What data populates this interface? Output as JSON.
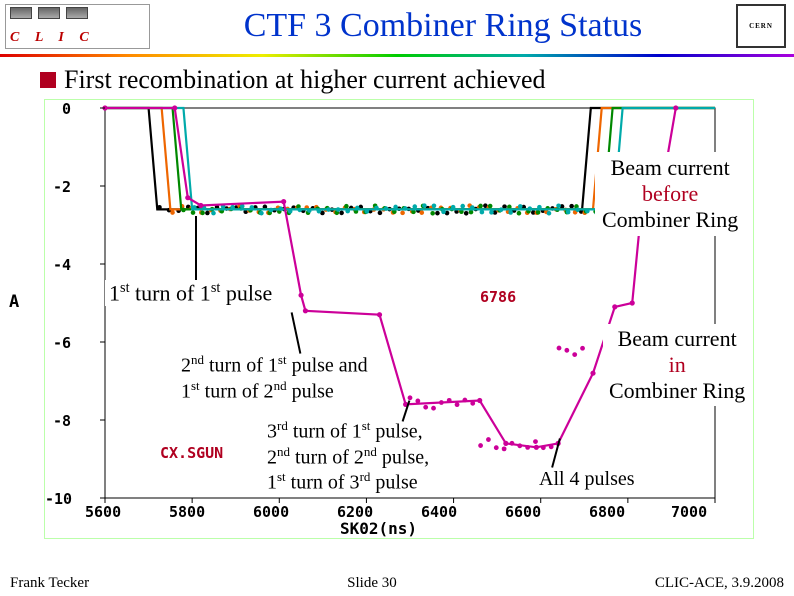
{
  "header": {
    "logo_text": "C L I C",
    "title": "CTF 3 Combiner Ring Status",
    "cern": "CERN"
  },
  "subheader": {
    "text": "First recombination at higher current achieved"
  },
  "figure": {
    "type": "line",
    "xlim": [
      5600,
      7000
    ],
    "ylim": [
      -10.0,
      0.0
    ],
    "xticks": [
      5600,
      5800,
      6000,
      6200,
      6400,
      6600,
      6800,
      7000
    ],
    "yticks": [
      0.0,
      -2.0,
      -4.0,
      -6.0,
      -8.0,
      -10.0
    ],
    "xlabel": "SK02(ns)",
    "yunit": "A",
    "background_color": "#ffffff",
    "axis_color": "#000000",
    "tick_font": "monospace",
    "series_label_red": "CX.SGUN",
    "series_label_blue": "6786",
    "colors": {
      "green": "#008800",
      "orange": "#ee6600",
      "magenta": "#cc0099",
      "teal": "#00aaaa",
      "black": "#000000"
    },
    "before_series": [
      {
        "name": "s1",
        "color": "#000000",
        "fall_x": 5700,
        "level": -2.6,
        "rise_x": 6695
      },
      {
        "name": "s2",
        "color": "#ee6600",
        "fall_x": 5730,
        "level": -2.6,
        "rise_x": 6720
      },
      {
        "name": "s3",
        "color": "#008800",
        "fall_x": 5755,
        "level": -2.6,
        "rise_x": 6745
      },
      {
        "name": "s4",
        "color": "#00aaaa",
        "fall_x": 5780,
        "level": -2.6,
        "rise_x": 6768
      }
    ],
    "ring_series": {
      "color": "#cc0099",
      "points": [
        [
          5600,
          0
        ],
        [
          5760,
          0
        ],
        [
          5790,
          -2.3
        ],
        [
          5820,
          -2.5
        ],
        [
          6010,
          -2.4
        ],
        [
          6050,
          -4.8
        ],
        [
          6060,
          -5.2
        ],
        [
          6230,
          -5.3
        ],
        [
          6290,
          -7.6
        ],
        [
          6460,
          -7.5
        ],
        [
          6520,
          -8.6
        ],
        [
          6590,
          -8.7
        ],
        [
          6640,
          -8.6
        ],
        [
          6720,
          -6.8
        ],
        [
          6770,
          -5.1
        ],
        [
          6810,
          -5.0
        ],
        [
          6830,
          -2.7
        ],
        [
          6870,
          -2.6
        ],
        [
          6910,
          0
        ]
      ]
    }
  },
  "annotations": {
    "turn1": "1",
    "turn1_suffix": "st",
    "turn1_rest": " turn of 1",
    "turn1_rest2": " pulse",
    "turn2_l1_a": "2",
    "turn2_l1_b": "nd",
    "turn2_l1_c": " turn of 1",
    "turn2_l1_d": "st",
    "turn2_l1_e": " pulse and",
    "turn2_l2_a": "1",
    "turn2_l2_b": "st",
    "turn2_l2_c": " turn of 2",
    "turn2_l2_d": "nd",
    "turn2_l2_e": " pulse",
    "turn3_l1_a": "3",
    "turn3_l1_b": "rd",
    "turn3_l1_c": " turn of 1",
    "turn3_l1_d": "st",
    "turn3_l1_e": " pulse,",
    "turn3_l2_a": "2",
    "turn3_l2_b": "nd",
    "turn3_l2_c": " turn of 2",
    "turn3_l2_d": "nd",
    "turn3_l2_e": " pulse,",
    "turn3_l3_a": "1",
    "turn3_l3_b": "st",
    "turn3_l3_c": " turn of 3",
    "turn3_l3_d": "rd",
    "turn3_l3_e": " pulse",
    "all4": "All 4 pulses",
    "before": {
      "l1": "Beam current",
      "l2": "before",
      "l3": "Combiner Ring"
    },
    "in": {
      "l1": "Beam current",
      "l2": "in",
      "l3": "Combiner Ring"
    }
  },
  "footer": {
    "author": "Frank Tecker",
    "slide": "Slide 30",
    "venue": "CLIC-ACE, 3.9.2008"
  }
}
